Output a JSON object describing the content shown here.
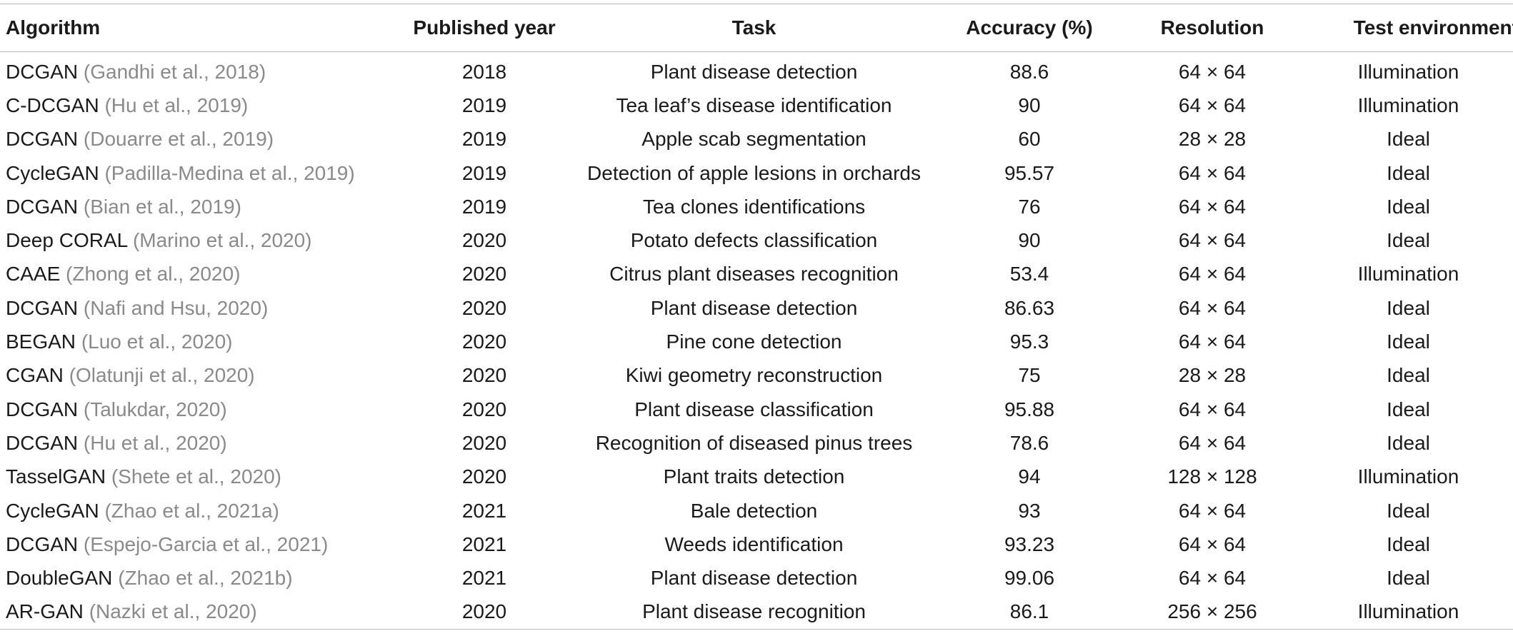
{
  "headers": {
    "algorithm": "Algorithm",
    "year": "Published year",
    "task": "Task",
    "accuracy": "Accuracy (%)",
    "resolution": "Resolution",
    "environment": "Test environment"
  },
  "rows": [
    {
      "name": "DCGAN",
      "cite": "(Gandhi et al., 2018)",
      "year": "2018",
      "task": "Plant disease detection",
      "accuracy": "88.6",
      "resolution": "64 × 64",
      "environment": "Illumination"
    },
    {
      "name": "C-DCGAN",
      "cite": "(Hu et al., 2019)",
      "year": "2019",
      "task": "Tea leaf’s disease identification",
      "accuracy": "90",
      "resolution": "64 × 64",
      "environment": "Illumination"
    },
    {
      "name": "DCGAN",
      "cite": "(Douarre et al., 2019)",
      "year": "2019",
      "task": "Apple scab segmentation",
      "accuracy": "60",
      "resolution": "28 × 28",
      "environment": "Ideal"
    },
    {
      "name": "CycleGAN",
      "cite": "(Padilla-Medina et al., 2019)",
      "year": "2019",
      "task": "Detection of apple lesions in orchards",
      "accuracy": "95.57",
      "resolution": "64 × 64",
      "environment": "Ideal"
    },
    {
      "name": "DCGAN",
      "cite": "(Bian et al., 2019)",
      "year": "2019",
      "task": "Tea clones identifications",
      "accuracy": "76",
      "resolution": "64 × 64",
      "environment": "Ideal"
    },
    {
      "name": "Deep CORAL",
      "cite": "(Marino et al., 2020)",
      "year": "2020",
      "task": "Potato defects classification",
      "accuracy": "90",
      "resolution": "64 × 64",
      "environment": "Ideal"
    },
    {
      "name": "CAAE",
      "cite": "(Zhong et al., 2020)",
      "year": "2020",
      "task": "Citrus plant diseases recognition",
      "accuracy": "53.4",
      "resolution": "64 × 64",
      "environment": "Illumination"
    },
    {
      "name": "DCGAN",
      "cite": "(Nafi and Hsu, 2020)",
      "year": "2020",
      "task": "Plant disease detection",
      "accuracy": "86.63",
      "resolution": "64 × 64",
      "environment": "Ideal"
    },
    {
      "name": "BEGAN",
      "cite": "(Luo et al., 2020)",
      "year": "2020",
      "task": "Pine cone detection",
      "accuracy": "95.3",
      "resolution": "64 × 64",
      "environment": "Ideal"
    },
    {
      "name": "CGAN",
      "cite": "(Olatunji et al., 2020)",
      "year": "2020",
      "task": "Kiwi geometry reconstruction",
      "accuracy": "75",
      "resolution": "28 × 28",
      "environment": "Ideal"
    },
    {
      "name": "DCGAN",
      "cite": "(Talukdar, 2020)",
      "year": "2020",
      "task": "Plant disease classification",
      "accuracy": "95.88",
      "resolution": "64 × 64",
      "environment": "Ideal"
    },
    {
      "name": "DCGAN",
      "cite": "(Hu et al., 2020)",
      "year": "2020",
      "task": "Recognition of diseased pinus trees",
      "accuracy": "78.6",
      "resolution": "64 × 64",
      "environment": "Ideal"
    },
    {
      "name": "TasselGAN",
      "cite": "(Shete et al., 2020)",
      "year": "2020",
      "task": "Plant traits detection",
      "accuracy": "94",
      "resolution": "128 × 128",
      "environment": "Illumination"
    },
    {
      "name": "CycleGAN",
      "cite": "(Zhao et al., 2021a)",
      "year": "2021",
      "task": "Bale detection",
      "accuracy": "93",
      "resolution": "64 × 64",
      "environment": "Ideal"
    },
    {
      "name": "DCGAN",
      "cite": "(Espejo-Garcia et al., 2021)",
      "year": "2021",
      "task": "Weeds identification",
      "accuracy": "93.23",
      "resolution": "64 × 64",
      "environment": "Ideal"
    },
    {
      "name": "DoubleGAN",
      "cite": "(Zhao et al., 2021b)",
      "year": "2021",
      "task": "Plant disease detection",
      "accuracy": "99.06",
      "resolution": "64 × 64",
      "environment": "Ideal"
    },
    {
      "name": "AR-GAN",
      "cite": "(Nazki et al., 2020)",
      "year": "2020",
      "task": "Plant disease recognition",
      "accuracy": "86.1",
      "resolution": "256 × 256",
      "environment": "Illumination"
    }
  ],
  "colors": {
    "text": "#1a1a1a",
    "citation": "#8a8a8a",
    "rule": "#b8b8b8",
    "background": "#ffffff"
  }
}
